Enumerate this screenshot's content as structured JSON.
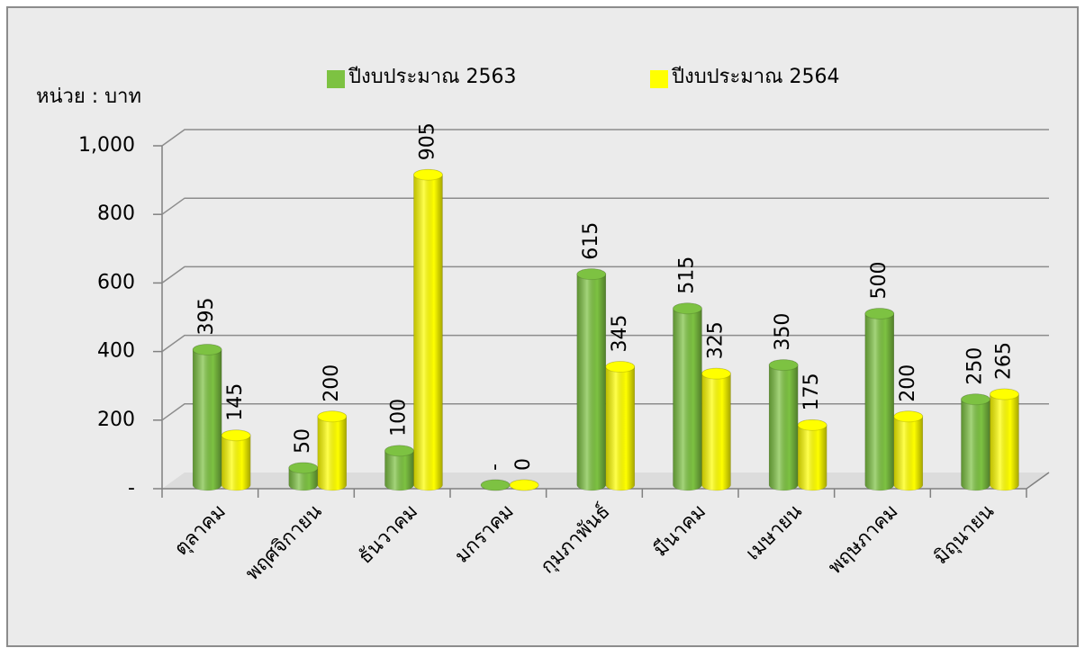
{
  "chart_data": {
    "type": "bar",
    "unit_label": "หน่วย : บาท",
    "categories": [
      "ตุลาคม",
      "พฤศจิกายน",
      "ธันวาคม",
      "มกราคม",
      "กุมภาพันธ์",
      "มีนาคม",
      "เมษายน",
      "พฤษภาคม",
      "มิถุนายน"
    ],
    "series": [
      {
        "name": "ปีงบประมาณ 2563",
        "color": "#7dc242",
        "values": [
          395,
          50,
          100,
          0,
          615,
          515,
          350,
          500,
          250
        ],
        "value_labels": [
          "395",
          "50",
          "100",
          "-",
          "615",
          "515",
          "350",
          "500",
          "250"
        ]
      },
      {
        "name": "ปีงบประมาณ 2564",
        "color": "#ffff00",
        "values": [
          145,
          200,
          905,
          0,
          345,
          325,
          175,
          200,
          265
        ]
      }
    ],
    "ylim": [
      0,
      1000
    ],
    "yticks": [
      {
        "value": 0,
        "label": "-"
      },
      200,
      400,
      600,
      800,
      {
        "value": 1000,
        "label": "1,000"
      }
    ],
    "grid": true,
    "legend": "top"
  }
}
